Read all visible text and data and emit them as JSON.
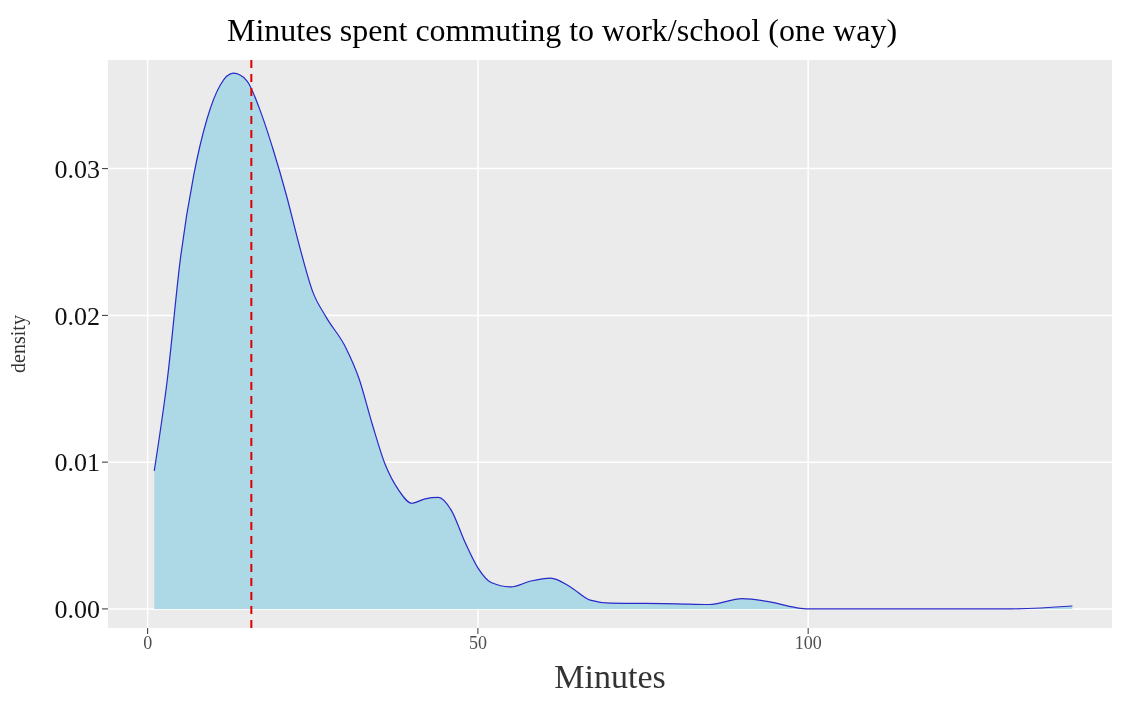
{
  "chart_data": {
    "type": "area",
    "title": "Minutes spent commuting to work/school (one way)",
    "xlabel": "Minutes",
    "ylabel": "density",
    "x": [
      1,
      3,
      5,
      7,
      9,
      11,
      13,
      15,
      17,
      19,
      21,
      23,
      25,
      27,
      30,
      32,
      34,
      36,
      38,
      40,
      42,
      44,
      46,
      48,
      50,
      52,
      55,
      58,
      61,
      64,
      67,
      70,
      80,
      85,
      90,
      94,
      98,
      100,
      130,
      140
    ],
    "series": [
      {
        "color": "#add8e6",
        "values": [
          0.0094,
          0.0157,
          0.024,
          0.0296,
          0.0334,
          0.0357,
          0.0365,
          0.036,
          0.034,
          0.0313,
          0.0282,
          0.0247,
          0.0216,
          0.0199,
          0.0178,
          0.0157,
          0.0126,
          0.0098,
          0.0081,
          0.0072,
          0.0075,
          0.0076,
          0.0067,
          0.0046,
          0.0028,
          0.0018,
          0.0015,
          0.0019,
          0.0021,
          0.0015,
          0.0006,
          0.0004,
          0.00035,
          0.0003,
          0.0007,
          0.0005,
          0.0001,
          0,
          0,
          0.0002
        ]
      }
    ],
    "xlim": [
      -6,
      146
    ],
    "xticks": [
      0,
      50,
      100
    ],
    "ylim": [
      -0.0013,
      0.0374
    ],
    "yticks": [
      {
        "value": 0,
        "label": "0.00"
      },
      {
        "value": 0.01,
        "label": "0.01"
      },
      {
        "value": 0.02,
        "label": "0.02"
      },
      {
        "value": 0.03,
        "label": "0.03"
      }
    ],
    "grid": true,
    "ref_lines": [
      {
        "axis": "x",
        "value": 15.7,
        "color": "#dd0000",
        "line_style": "dashed"
      }
    ]
  }
}
